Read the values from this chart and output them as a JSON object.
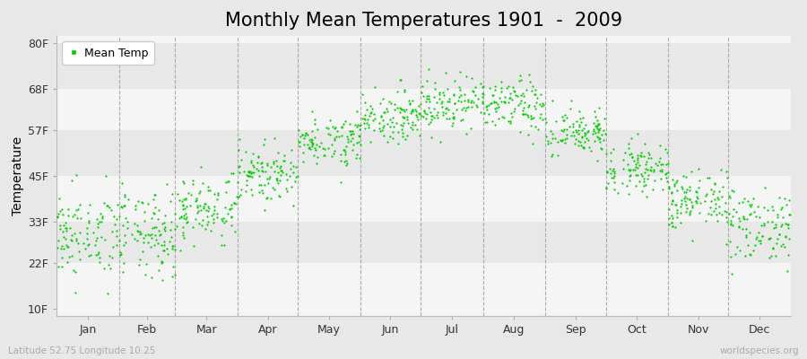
{
  "title": "Monthly Mean Temperatures 1901  -  2009",
  "ylabel": "Temperature",
  "xlabel_labels": [
    "Jan",
    "Feb",
    "Mar",
    "Apr",
    "May",
    "Jun",
    "Jul",
    "Aug",
    "Sep",
    "Oct",
    "Nov",
    "Dec"
  ],
  "ytick_labels": [
    "10F",
    "22F",
    "33F",
    "45F",
    "57F",
    "68F",
    "80F"
  ],
  "ytick_values": [
    10,
    22,
    33,
    45,
    57,
    68,
    80
  ],
  "ylim": [
    8,
    82
  ],
  "dot_color": "#00cc00",
  "background_color": "#e8e8e8",
  "plot_bg_light": "#f5f5f5",
  "plot_bg_dark": "#e8e8e8",
  "footer_left": "Latitude 52.75 Longitude 10.25",
  "footer_right": "worldspecies.org",
  "legend_label": "Mean Temp",
  "title_fontsize": 15,
  "axis_fontsize": 10,
  "tick_fontsize": 9,
  "monthly_means_celsius": [
    -1.5,
    -1.5,
    2.5,
    7.5,
    12.5,
    16.0,
    18.0,
    17.5,
    13.5,
    8.5,
    3.5,
    0.0
  ],
  "monthly_stds_celsius": [
    3.2,
    3.2,
    2.5,
    2.0,
    1.8,
    1.8,
    2.0,
    2.0,
    1.8,
    1.8,
    2.2,
    2.8
  ],
  "n_years": 109,
  "seed": 42
}
